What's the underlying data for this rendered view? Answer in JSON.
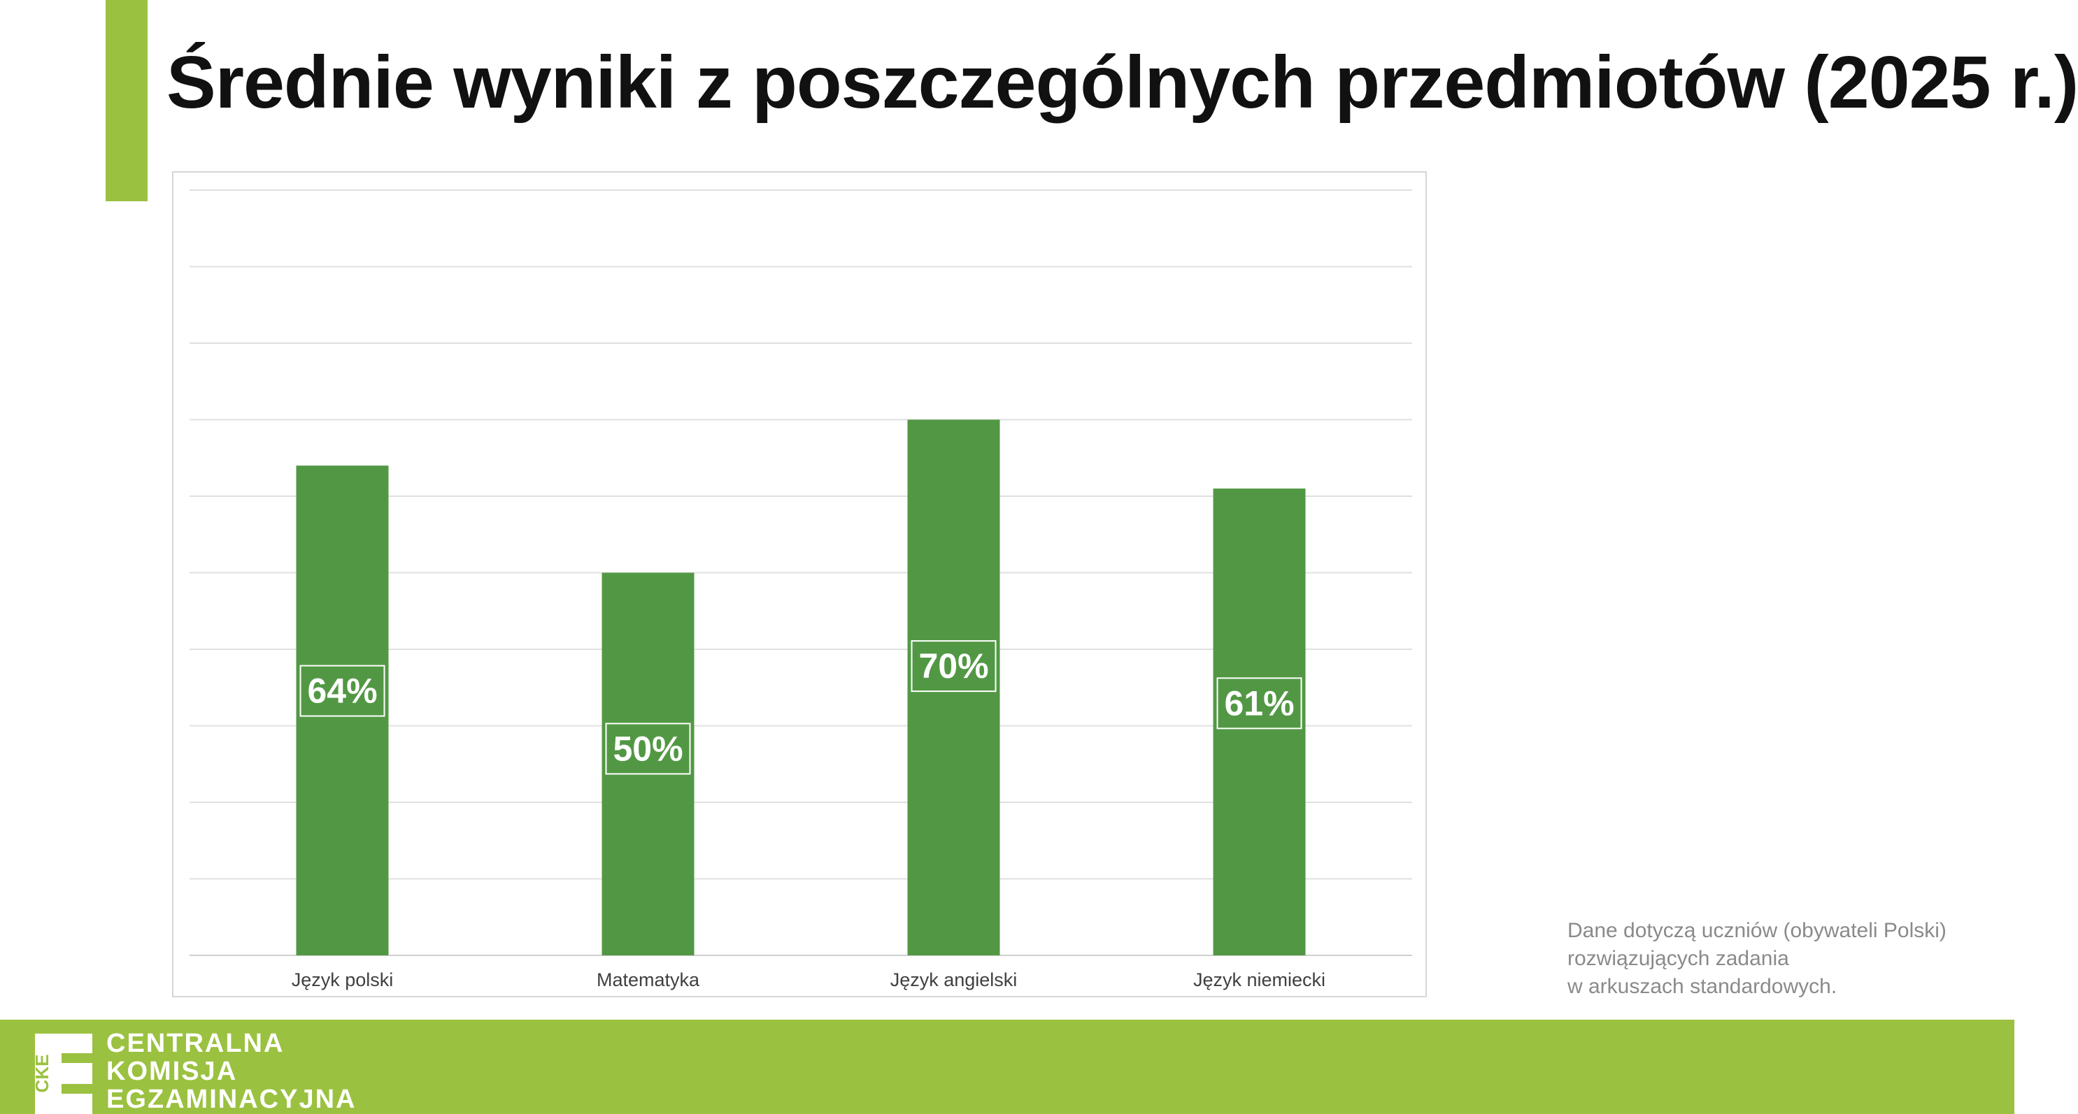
{
  "header": {
    "title": "Średnie wyniki z poszczególnych przedmiotów (2025 r.)"
  },
  "colors": {
    "accent": "#9bc140",
    "bar": "#529844",
    "gridline": "#e0e0e0"
  },
  "chart_data": {
    "type": "bar",
    "categories": [
      "Język polski",
      "Matematyka",
      "Język angielski",
      "Język niemiecki"
    ],
    "values": [
      64,
      50,
      70,
      61
    ],
    "labels": [
      "64%",
      "50%",
      "70%",
      "61%"
    ],
    "ylim": [
      0,
      100
    ],
    "grid": true,
    "xlabel": "",
    "ylabel": ""
  },
  "note": {
    "lines": [
      "Dane dotyczą uczniów (obywateli Polski)",
      "rozwiązujących zadania",
      "w arkuszach standardowych."
    ]
  },
  "footer": {
    "logo_mark": "CKE",
    "logo_lines": [
      "CENTRALNA",
      "KOMISJA",
      "EGZAMINACYJNA"
    ]
  }
}
